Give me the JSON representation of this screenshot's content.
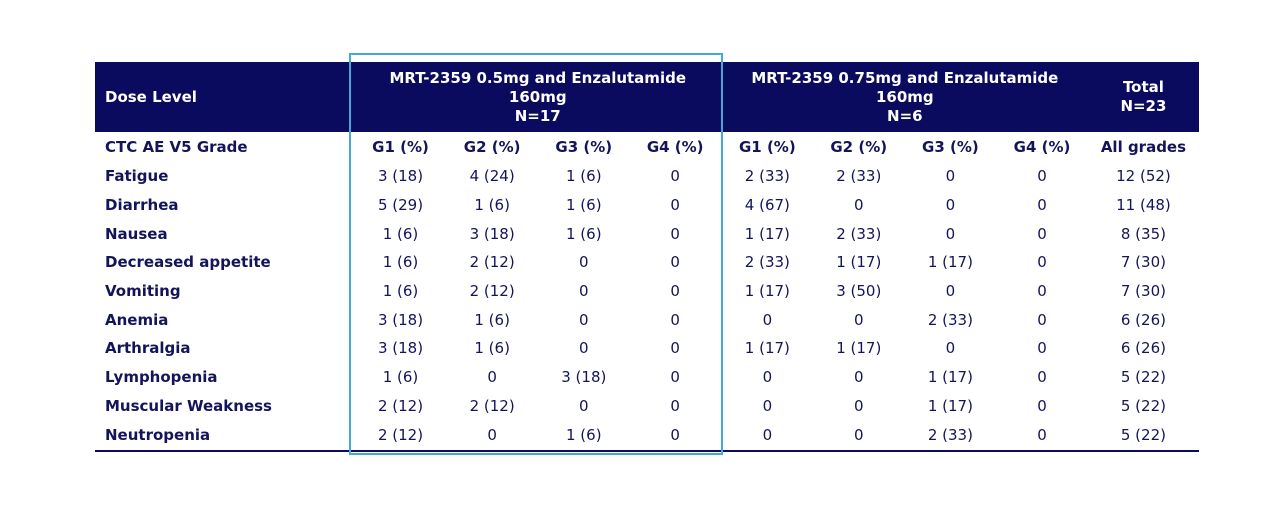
{
  "table": {
    "header": {
      "dose_level": "Dose Level",
      "group1": {
        "line1": "MRT-2359 0.5mg and Enzalutamide",
        "line2": "160mg",
        "line3": "N=17"
      },
      "group2": {
        "line1": "MRT-2359 0.75mg and Enzalutamide",
        "line2": "160mg",
        "line3": "N=6"
      },
      "total": {
        "line1": "Total",
        "line2": "N=23"
      }
    },
    "subheader": {
      "label": "CTC AE V5 Grade",
      "g1a": "G1 (%)",
      "g2a": "G2 (%)",
      "g3a": "G3 (%)",
      "g4a": "G4 (%)",
      "g1b": "G1 (%)",
      "g2b": "G2 (%)",
      "g3b": "G3 (%)",
      "g4b": "G4 (%)",
      "all": "All grades"
    },
    "rows": [
      {
        "label": "Fatigue",
        "g1a": "3 (18)",
        "g2a": "4 (24)",
        "g3a": "1 (6)",
        "g4a": "0",
        "g1b": "2 (33)",
        "g2b": "2 (33)",
        "g3b": "0",
        "g4b": "0",
        "all": "12 (52)"
      },
      {
        "label": "Diarrhea",
        "g1a": "5 (29)",
        "g2a": "1 (6)",
        "g3a": "1 (6)",
        "g4a": "0",
        "g1b": "4 (67)",
        "g2b": "0",
        "g3b": "0",
        "g4b": "0",
        "all": "11 (48)"
      },
      {
        "label": "Nausea",
        "g1a": "1 (6)",
        "g2a": "3 (18)",
        "g3a": "1 (6)",
        "g4a": "0",
        "g1b": "1 (17)",
        "g2b": "2 (33)",
        "g3b": "0",
        "g4b": "0",
        "all": "8 (35)"
      },
      {
        "label": "Decreased appetite",
        "g1a": "1 (6)",
        "g2a": "2 (12)",
        "g3a": "0",
        "g4a": "0",
        "g1b": "2 (33)",
        "g2b": "1 (17)",
        "g3b": "1 (17)",
        "g4b": "0",
        "all": "7 (30)"
      },
      {
        "label": "Vomiting",
        "g1a": "1 (6)",
        "g2a": "2 (12)",
        "g3a": "0",
        "g4a": "0",
        "g1b": "1 (17)",
        "g2b": "3 (50)",
        "g3b": "0",
        "g4b": "0",
        "all": "7 (30)"
      },
      {
        "label": "Anemia",
        "g1a": "3 (18)",
        "g2a": "1 (6)",
        "g3a": "0",
        "g4a": "0",
        "g1b": "0",
        "g2b": "0",
        "g3b": "2 (33)",
        "g4b": "0",
        "all": "6 (26)"
      },
      {
        "label": "Arthralgia",
        "g1a": "3 (18)",
        "g2a": "1 (6)",
        "g3a": "0",
        "g4a": "0",
        "g1b": "1 (17)",
        "g2b": "1 (17)",
        "g3b": "0",
        "g4b": "0",
        "all": "6 (26)"
      },
      {
        "label": "Lymphopenia",
        "g1a": "1 (6)",
        "g2a": "0",
        "g3a": "3 (18)",
        "g4a": "0",
        "g1b": "0",
        "g2b": "0",
        "g3b": "1 (17)",
        "g4b": "0",
        "all": "5 (22)"
      },
      {
        "label": "Muscular Weakness",
        "g1a": "2 (12)",
        "g2a": "2 (12)",
        "g3a": "0",
        "g4a": "0",
        "g1b": "0",
        "g2b": "0",
        "g3b": "1 (17)",
        "g4b": "0",
        "all": "5 (22)"
      },
      {
        "label": "Neutropenia",
        "g1a": "2 (12)",
        "g2a": "0",
        "g3a": "1 (6)",
        "g4a": "0",
        "g1b": "0",
        "g2b": "0",
        "g3b": "2 (33)",
        "g4b": "0",
        "all": "5 (22)"
      }
    ]
  },
  "colors": {
    "header_bg": "#0a0a5e",
    "text": "#14145a",
    "highlight_border": "#45a9d4"
  }
}
